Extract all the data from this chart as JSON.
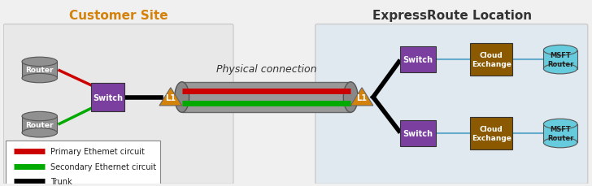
{
  "bg_color_left": "#e8e8e8",
  "bg_color_right": "#e0e8f0",
  "title_left": "Customer Site",
  "title_right": "ExpressRoute Location",
  "title_left_color": "#d4820a",
  "title_right_color": "#333333",
  "physical_connection_label": "Physical connection",
  "router_color": "#909090",
  "switch_color": "#7B3FA0",
  "l1_color": "#d4820a",
  "cloud_exchange_color": "#8B5A00",
  "msft_router_color": "#66CCDD",
  "cable_color": "#999999",
  "cable_cap_color": "#888888",
  "primary_color": "#CC0000",
  "secondary_color": "#00AA00",
  "trunk_color": "#000000",
  "connector_color": "#66AACC",
  "legend_items": [
    {
      "label": "Primary Ethemet circuit",
      "color": "#CC0000"
    },
    {
      "label": "Secondary Ethernet circuit",
      "color": "#00AA00"
    },
    {
      "label": "Trunk",
      "color": "#000000"
    }
  ]
}
